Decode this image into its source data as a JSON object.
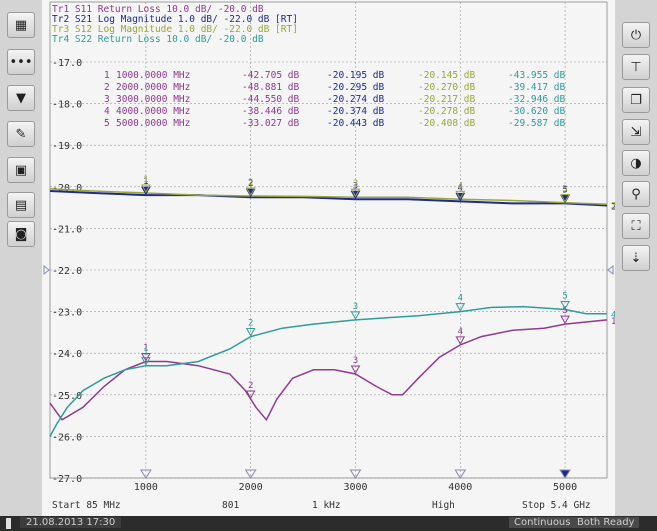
{
  "traces_header": [
    {
      "id": "Tr1",
      "text": "Tr1 S11 Return Loss 10.0 dB/ -20.0 dB",
      "color": "#8e3b8e"
    },
    {
      "id": "Tr2",
      "text": "Tr2 S21 Log Magnitude 1.0 dB/ -22.0 dB [RT]",
      "color": "#1f2a8a"
    },
    {
      "id": "Tr3",
      "text": "Tr3 S12 Log Magnitude 1.0 dB/ -22.0 dB [RT]",
      "color": "#9aa63a"
    },
    {
      "id": "Tr4",
      "text": "Tr4 S22 Return Loss 10.0 dB/ -20.0 dB",
      "color": "#2f9d98"
    }
  ],
  "marker_table": [
    {
      "num": "1",
      "freq": "1000.0000 MHz",
      "v1": "-42.705 dB",
      "v2": "-20.195 dB",
      "v3": "-20.145 dB",
      "v4": "-43.955 dB"
    },
    {
      "num": "2",
      "freq": "2000.0000 MHz",
      "v1": "-48.881 dB",
      "v2": "-20.295 dB",
      "v3": "-20.270 dB",
      "v4": "-39.417 dB"
    },
    {
      "num": "3",
      "freq": "3000.0000 MHz",
      "v1": "-44.550 dB",
      "v2": "-20.274 dB",
      "v3": "-20.217 dB",
      "v4": "-32.946 dB"
    },
    {
      "num": "4",
      "freq": "4000.0000 MHz",
      "v1": "-38.446 dB",
      "v2": "-20.374 dB",
      "v3": "-20.278 dB",
      "v4": "-30.620 dB"
    },
    {
      "num": "5",
      "freq": "5000.0000 MHz",
      "v1": "-33.027 dB",
      "v2": "-20.443 dB",
      "v3": "-20.408 dB",
      "v4": "-29.587 dB"
    }
  ],
  "footer": {
    "start": "Start 85 MHz",
    "points": "801",
    "ifbw": "1 kHz",
    "power": "High",
    "stop": "Stop 5.4 GHz"
  },
  "status": {
    "datetime": "21.08.2013 17:30",
    "sweep_mode": "Continuous",
    "ready": "Both Ready"
  },
  "left_toolbar": [
    "grid-icon",
    "more-icon",
    "filter-icon",
    "pen-icon",
    "save-icon",
    "display-icon",
    "camera-icon"
  ],
  "right_toolbar": [
    "power-icon",
    "marker-tool-icon",
    "copy-icon",
    "scale-icon",
    "trace-icon",
    "search-icon",
    "network-icon",
    "pin-icon"
  ],
  "colors": {
    "s11": "#8e3b8e",
    "s21": "#1f2a8a",
    "s12": "#9aa63a",
    "s22": "#2f9d98",
    "grid": "#9a9a9a"
  },
  "chart_data": {
    "type": "line",
    "xlim": [
      85,
      5400
    ],
    "ylim": [
      -27.0,
      -17.0
    ],
    "x_ticks": [
      1000,
      2000,
      3000,
      4000,
      5000
    ],
    "x_tick_labels": [
      "1000",
      "2000",
      "3000",
      "4000",
      "5000"
    ],
    "y_ticks": [
      -17.0,
      -18.0,
      -19.0,
      -20.0,
      -21.0,
      -22.0,
      -23.0,
      -24.0,
      -25.0,
      -26.0,
      -27.0
    ],
    "y_tick_labels": [
      "-17.0",
      "-18.0",
      "-19.0",
      "-20.0",
      "-21.0",
      "-22.0",
      "-23.0",
      "-24.0",
      "-25.0",
      "-26.0",
      "-27.0"
    ],
    "series": [
      {
        "name": "1",
        "key": "s11",
        "x": [
          85,
          200,
          400,
          600,
          800,
          1000,
          1200,
          1500,
          1800,
          1950,
          2050,
          2150,
          2250,
          2400,
          2600,
          2800,
          3000,
          3200,
          3350,
          3450,
          3600,
          3800,
          4000,
          4200,
          4500,
          4800,
          5000,
          5200,
          5400
        ],
        "y": [
          -25.2,
          -25.6,
          -25.3,
          -24.8,
          -24.4,
          -24.2,
          -24.2,
          -24.3,
          -24.5,
          -24.9,
          -25.3,
          -25.6,
          -25.1,
          -24.6,
          -24.4,
          -24.4,
          -24.5,
          -24.8,
          -25.0,
          -25.0,
          -24.6,
          -24.1,
          -23.8,
          -23.6,
          -23.45,
          -23.4,
          -23.3,
          -23.25,
          -23.2
        ]
      },
      {
        "name": "2",
        "key": "s21",
        "x": [
          85,
          500,
          1000,
          1500,
          2000,
          2500,
          3000,
          3500,
          4000,
          4500,
          5000,
          5400
        ],
        "y": [
          -20.1,
          -20.15,
          -20.2,
          -20.2,
          -20.25,
          -20.25,
          -20.3,
          -20.3,
          -20.35,
          -20.4,
          -20.4,
          -20.45
        ]
      },
      {
        "name": "3",
        "key": "s12",
        "x": [
          85,
          500,
          1000,
          1500,
          2000,
          2500,
          3000,
          3500,
          4000,
          4500,
          5000,
          5400
        ],
        "y": [
          -20.05,
          -20.1,
          -20.15,
          -20.2,
          -20.22,
          -20.23,
          -20.25,
          -20.25,
          -20.3,
          -20.33,
          -20.38,
          -20.42
        ]
      },
      {
        "name": "4",
        "key": "s22",
        "x": [
          85,
          150,
          250,
          400,
          600,
          800,
          1000,
          1200,
          1500,
          1800,
          2000,
          2300,
          2600,
          3000,
          3300,
          3600,
          4000,
          4300,
          4600,
          5000,
          5200,
          5400
        ],
        "y": [
          -26.0,
          -25.7,
          -25.3,
          -24.9,
          -24.6,
          -24.4,
          -24.3,
          -24.3,
          -24.2,
          -23.9,
          -23.6,
          -23.4,
          -23.3,
          -23.2,
          -23.15,
          -23.1,
          -23.0,
          -22.9,
          -22.88,
          -22.95,
          -23.05,
          -23.05
        ]
      }
    ],
    "markers": [
      {
        "label": "1",
        "x": 1000
      },
      {
        "label": "2",
        "x": 2000
      },
      {
        "label": "3",
        "x": 3000
      },
      {
        "label": "4",
        "x": 4000
      },
      {
        "label": "5",
        "x": 5000
      }
    ]
  }
}
